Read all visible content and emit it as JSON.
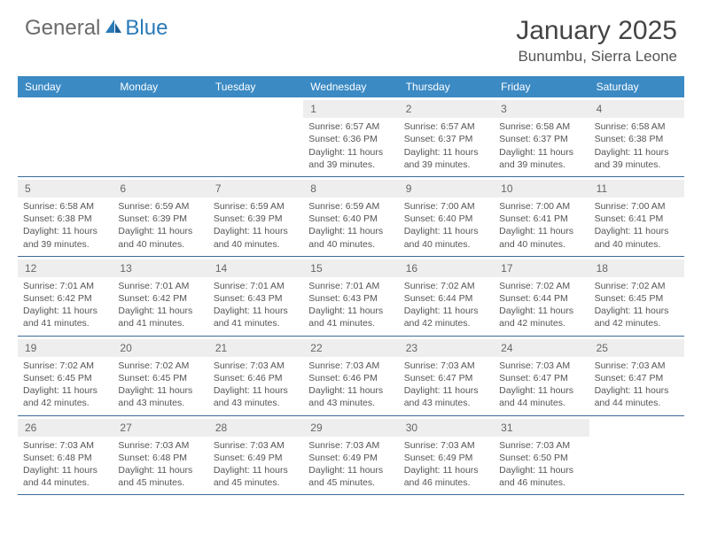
{
  "logo": {
    "general": "General",
    "blue": "Blue"
  },
  "title": "January 2025",
  "location": "Bunumbu, Sierra Leone",
  "colors": {
    "header_bar": "#3b8ac4",
    "week_divider": "#3b6a9a",
    "day_num_bg": "#eeeeee",
    "logo_gray": "#6b6b6b",
    "logo_blue": "#2a7ab8",
    "text": "#555555"
  },
  "weekdays": [
    "Sunday",
    "Monday",
    "Tuesday",
    "Wednesday",
    "Thursday",
    "Friday",
    "Saturday"
  ],
  "weeks": [
    [
      null,
      null,
      null,
      {
        "n": "1",
        "sr": "Sunrise: 6:57 AM",
        "ss": "Sunset: 6:36 PM",
        "d1": "Daylight: 11 hours",
        "d2": "and 39 minutes."
      },
      {
        "n": "2",
        "sr": "Sunrise: 6:57 AM",
        "ss": "Sunset: 6:37 PM",
        "d1": "Daylight: 11 hours",
        "d2": "and 39 minutes."
      },
      {
        "n": "3",
        "sr": "Sunrise: 6:58 AM",
        "ss": "Sunset: 6:37 PM",
        "d1": "Daylight: 11 hours",
        "d2": "and 39 minutes."
      },
      {
        "n": "4",
        "sr": "Sunrise: 6:58 AM",
        "ss": "Sunset: 6:38 PM",
        "d1": "Daylight: 11 hours",
        "d2": "and 39 minutes."
      }
    ],
    [
      {
        "n": "5",
        "sr": "Sunrise: 6:58 AM",
        "ss": "Sunset: 6:38 PM",
        "d1": "Daylight: 11 hours",
        "d2": "and 39 minutes."
      },
      {
        "n": "6",
        "sr": "Sunrise: 6:59 AM",
        "ss": "Sunset: 6:39 PM",
        "d1": "Daylight: 11 hours",
        "d2": "and 40 minutes."
      },
      {
        "n": "7",
        "sr": "Sunrise: 6:59 AM",
        "ss": "Sunset: 6:39 PM",
        "d1": "Daylight: 11 hours",
        "d2": "and 40 minutes."
      },
      {
        "n": "8",
        "sr": "Sunrise: 6:59 AM",
        "ss": "Sunset: 6:40 PM",
        "d1": "Daylight: 11 hours",
        "d2": "and 40 minutes."
      },
      {
        "n": "9",
        "sr": "Sunrise: 7:00 AM",
        "ss": "Sunset: 6:40 PM",
        "d1": "Daylight: 11 hours",
        "d2": "and 40 minutes."
      },
      {
        "n": "10",
        "sr": "Sunrise: 7:00 AM",
        "ss": "Sunset: 6:41 PM",
        "d1": "Daylight: 11 hours",
        "d2": "and 40 minutes."
      },
      {
        "n": "11",
        "sr": "Sunrise: 7:00 AM",
        "ss": "Sunset: 6:41 PM",
        "d1": "Daylight: 11 hours",
        "d2": "and 40 minutes."
      }
    ],
    [
      {
        "n": "12",
        "sr": "Sunrise: 7:01 AM",
        "ss": "Sunset: 6:42 PM",
        "d1": "Daylight: 11 hours",
        "d2": "and 41 minutes."
      },
      {
        "n": "13",
        "sr": "Sunrise: 7:01 AM",
        "ss": "Sunset: 6:42 PM",
        "d1": "Daylight: 11 hours",
        "d2": "and 41 minutes."
      },
      {
        "n": "14",
        "sr": "Sunrise: 7:01 AM",
        "ss": "Sunset: 6:43 PM",
        "d1": "Daylight: 11 hours",
        "d2": "and 41 minutes."
      },
      {
        "n": "15",
        "sr": "Sunrise: 7:01 AM",
        "ss": "Sunset: 6:43 PM",
        "d1": "Daylight: 11 hours",
        "d2": "and 41 minutes."
      },
      {
        "n": "16",
        "sr": "Sunrise: 7:02 AM",
        "ss": "Sunset: 6:44 PM",
        "d1": "Daylight: 11 hours",
        "d2": "and 42 minutes."
      },
      {
        "n": "17",
        "sr": "Sunrise: 7:02 AM",
        "ss": "Sunset: 6:44 PM",
        "d1": "Daylight: 11 hours",
        "d2": "and 42 minutes."
      },
      {
        "n": "18",
        "sr": "Sunrise: 7:02 AM",
        "ss": "Sunset: 6:45 PM",
        "d1": "Daylight: 11 hours",
        "d2": "and 42 minutes."
      }
    ],
    [
      {
        "n": "19",
        "sr": "Sunrise: 7:02 AM",
        "ss": "Sunset: 6:45 PM",
        "d1": "Daylight: 11 hours",
        "d2": "and 42 minutes."
      },
      {
        "n": "20",
        "sr": "Sunrise: 7:02 AM",
        "ss": "Sunset: 6:45 PM",
        "d1": "Daylight: 11 hours",
        "d2": "and 43 minutes."
      },
      {
        "n": "21",
        "sr": "Sunrise: 7:03 AM",
        "ss": "Sunset: 6:46 PM",
        "d1": "Daylight: 11 hours",
        "d2": "and 43 minutes."
      },
      {
        "n": "22",
        "sr": "Sunrise: 7:03 AM",
        "ss": "Sunset: 6:46 PM",
        "d1": "Daylight: 11 hours",
        "d2": "and 43 minutes."
      },
      {
        "n": "23",
        "sr": "Sunrise: 7:03 AM",
        "ss": "Sunset: 6:47 PM",
        "d1": "Daylight: 11 hours",
        "d2": "and 43 minutes."
      },
      {
        "n": "24",
        "sr": "Sunrise: 7:03 AM",
        "ss": "Sunset: 6:47 PM",
        "d1": "Daylight: 11 hours",
        "d2": "and 44 minutes."
      },
      {
        "n": "25",
        "sr": "Sunrise: 7:03 AM",
        "ss": "Sunset: 6:47 PM",
        "d1": "Daylight: 11 hours",
        "d2": "and 44 minutes."
      }
    ],
    [
      {
        "n": "26",
        "sr": "Sunrise: 7:03 AM",
        "ss": "Sunset: 6:48 PM",
        "d1": "Daylight: 11 hours",
        "d2": "and 44 minutes."
      },
      {
        "n": "27",
        "sr": "Sunrise: 7:03 AM",
        "ss": "Sunset: 6:48 PM",
        "d1": "Daylight: 11 hours",
        "d2": "and 45 minutes."
      },
      {
        "n": "28",
        "sr": "Sunrise: 7:03 AM",
        "ss": "Sunset: 6:49 PM",
        "d1": "Daylight: 11 hours",
        "d2": "and 45 minutes."
      },
      {
        "n": "29",
        "sr": "Sunrise: 7:03 AM",
        "ss": "Sunset: 6:49 PM",
        "d1": "Daylight: 11 hours",
        "d2": "and 45 minutes."
      },
      {
        "n": "30",
        "sr": "Sunrise: 7:03 AM",
        "ss": "Sunset: 6:49 PM",
        "d1": "Daylight: 11 hours",
        "d2": "and 46 minutes."
      },
      {
        "n": "31",
        "sr": "Sunrise: 7:03 AM",
        "ss": "Sunset: 6:50 PM",
        "d1": "Daylight: 11 hours",
        "d2": "and 46 minutes."
      },
      null
    ]
  ]
}
